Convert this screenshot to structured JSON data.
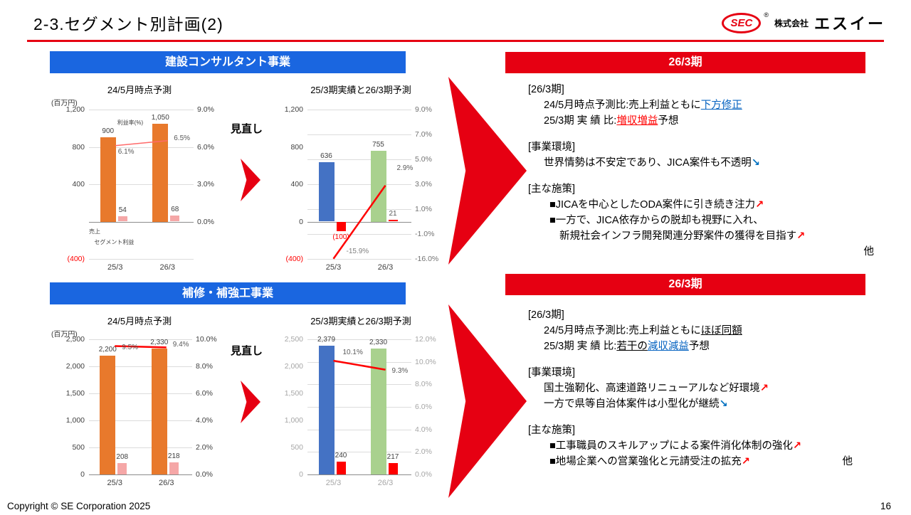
{
  "header": {
    "title": "2-3.セグメント別計画(2)",
    "logo": {
      "mark": "SEC",
      "reg": "®",
      "company_small": "株式会社",
      "company_large": "エスイー"
    }
  },
  "footer": {
    "copyright": "Copyright © SE Corporation 2025",
    "page": "16"
  },
  "sections": [
    {
      "header": "建設コンサルタント事業",
      "revise_label": "見直し"
    },
    {
      "header": "補修・補強工事業",
      "revise_label": "見直し"
    }
  ],
  "right_panels": [
    {
      "period_header": "26/3期",
      "lines": [
        {
          "segs": [
            {
              "t": "[26/3期]"
            }
          ]
        },
        {
          "ind": 1,
          "segs": [
            {
              "t": "24/5月時点予測比:売上利益ともに"
            },
            {
              "t": "下方修正",
              "s": "blue-ul"
            }
          ]
        },
        {
          "ind": 1,
          "segs": [
            {
              "t": "25/3期 実 績 比:"
            },
            {
              "t": "増収増益",
              "s": "red-ul"
            },
            {
              "t": "予想"
            }
          ]
        },
        {
          "gap": true,
          "segs": [
            {
              "t": "[事業環境]"
            }
          ]
        },
        {
          "ind": 1,
          "segs": [
            {
              "t": "世界情勢は不安定であり、JICA案件も不透明"
            },
            {
              "t": "↘",
              "s": "down"
            }
          ]
        },
        {
          "gap": true,
          "segs": [
            {
              "t": "[主な施策]"
            }
          ]
        },
        {
          "ind": 2,
          "segs": [
            {
              "t": "■JICAを中心としたODA案件に引き続き注力"
            },
            {
              "t": "↗",
              "s": "up"
            }
          ]
        },
        {
          "ind": 2,
          "segs": [
            {
              "t": "■一方で、JICA依存からの脱却も視野に入れ、"
            }
          ]
        },
        {
          "ind": 3,
          "segs": [
            {
              "t": "新規社会インフラ開発関連分野案件の獲得を目指す"
            },
            {
              "t": "↗",
              "s": "up"
            }
          ]
        },
        {
          "align": "right",
          "segs": [
            {
              "t": "他"
            }
          ]
        }
      ]
    },
    {
      "period_header": "26/3期",
      "lines": [
        {
          "segs": [
            {
              "t": "[26/3期]"
            }
          ]
        },
        {
          "ind": 1,
          "segs": [
            {
              "t": "24/5月時点予測比:売上利益ともに"
            },
            {
              "t": "ほぼ同額",
              "s": "black-ul"
            }
          ]
        },
        {
          "ind": 1,
          "segs": [
            {
              "t": "25/3期 実 績 比:"
            },
            {
              "t": "若干の",
              "s": "black-ul"
            },
            {
              "t": "減収減益",
              "s": "blue-ul"
            },
            {
              "t": "予想"
            }
          ]
        },
        {
          "gap": true,
          "segs": [
            {
              "t": "[事業環境]"
            }
          ]
        },
        {
          "ind": 1,
          "segs": [
            {
              "t": "国土強靭化、高速道路リニューアルなど好環境"
            },
            {
              "t": "↗",
              "s": "up"
            }
          ]
        },
        {
          "ind": 1,
          "segs": [
            {
              "t": "一方で県等自治体案件は小型化が継続"
            },
            {
              "t": "↘",
              "s": "down"
            }
          ]
        },
        {
          "gap": true,
          "segs": [
            {
              "t": "[主な施策]"
            }
          ]
        },
        {
          "ind": 2,
          "segs": [
            {
              "t": "■工事職員のスキルアップによる案件消化体制の強化"
            },
            {
              "t": "↗",
              "s": "up"
            }
          ]
        },
        {
          "ind": 2,
          "segs": [
            {
              "t": "■地場企業への営業強化と元請受注の拡充"
            },
            {
              "t": "↗",
              "s": "up"
            },
            {
              "t": "他",
              "s": "tail"
            }
          ]
        }
      ]
    }
  ],
  "chart_data": [
    {
      "type": "bar",
      "title": "24/5月時点予測",
      "unit": "(百万円)",
      "categories": [
        "25/3",
        "26/3"
      ],
      "grid": "y1",
      "y1": {
        "color": "#404040",
        "ticks": [
          {
            "label": "1,200",
            "v": 1200,
            "f": 0
          },
          {
            "label": "800",
            "v": 800,
            "f": 0.25
          },
          {
            "label": "400",
            "v": 400,
            "f": 0.5
          },
          {
            "label": "",
            "v": 0,
            "f": 0.75
          },
          {
            "label": "(400)",
            "v": -400,
            "f": 1,
            "red": true
          }
        ]
      },
      "y2": {
        "color": "#404040",
        "ticks": [
          {
            "label": "9.0%",
            "v": 9,
            "f": 0
          },
          {
            "label": "6.0%",
            "v": 6,
            "f": 0.25
          },
          {
            "label": "3.0%",
            "v": 3,
            "f": 0.5
          },
          {
            "label": "0.0%",
            "v": 0,
            "f": 0.75
          }
        ]
      },
      "series": [
        {
          "name": "売上",
          "type": "bar",
          "color": "#E8792C",
          "values": [
            900,
            1050
          ],
          "labels": [
            "900",
            "1,050"
          ]
        },
        {
          "name": "セグメント利益",
          "type": "bar",
          "color": "#F5A7A7",
          "values": [
            54,
            68
          ],
          "labels": [
            "54",
            "68"
          ]
        },
        {
          "name": "利益率(%)",
          "type": "line",
          "color": "#FF6A6A",
          "width": 1.4,
          "values": [
            6.1,
            6.5
          ],
          "labels": [
            "6.1%",
            "6.5%"
          ],
          "label_offsets": [
            [
              4,
              3
            ],
            [
              9,
              -9
            ]
          ]
        }
      ],
      "annotations": [
        {
          "t": "利益率(%)",
          "x": 0.27,
          "y": 0.06
        },
        {
          "t": "売上",
          "x": 0.0,
          "y": 0.79
        },
        {
          "t": "セグメント利益",
          "x": 0.05,
          "y": 0.86
        }
      ]
    },
    {
      "type": "bar",
      "title": "25/3期実績と26/3期予測",
      "categories": [
        "25/3",
        "26/3"
      ],
      "grid": "y2",
      "y1": {
        "color": "#404040",
        "ticks": [
          {
            "label": "1,200",
            "v": 1200,
            "f": 0
          },
          {
            "label": "800",
            "v": 800,
            "f": 0.25
          },
          {
            "label": "400",
            "v": 400,
            "f": 0.5
          },
          {
            "label": "0",
            "v": 0,
            "f": 0.75
          },
          {
            "label": "(400)",
            "v": -400,
            "f": 1,
            "red": true
          }
        ]
      },
      "y2": {
        "color": "#737373",
        "ticks": [
          {
            "label": "9.0%",
            "v": 9,
            "f": 0
          },
          {
            "label": "7.0%",
            "v": 7,
            "f": 0.1667
          },
          {
            "label": "5.0%",
            "v": 5,
            "f": 0.3333
          },
          {
            "label": "3.0%",
            "v": 3,
            "f": 0.5
          },
          {
            "label": "1.0%",
            "v": 1,
            "f": 0.6667
          },
          {
            "label": "-1.0%",
            "v": -1,
            "f": 0.8333
          },
          {
            "label": "-16.0%",
            "v": -16,
            "f": 1
          }
        ]
      },
      "series": [
        {
          "name": "売上",
          "type": "bar",
          "colors": [
            "#4472C4",
            "#A9D18E"
          ],
          "values": [
            636,
            755
          ],
          "labels": [
            "636",
            "755"
          ]
        },
        {
          "name": "セグメント利益",
          "type": "bar",
          "color": "#FF0000",
          "values": [
            -100,
            21
          ],
          "labels": [
            "(100)",
            "21"
          ],
          "label_colors": [
            "#FF0000",
            "#595959"
          ]
        },
        {
          "name": "利益率(%)",
          "type": "line",
          "color": "#FF0000",
          "width": 2.5,
          "values": [
            -15.9,
            2.9
          ],
          "labels": [
            "-15.9%",
            "2.9%"
          ],
          "label_colors": [
            "#808080",
            "#595959"
          ],
          "label_offsets": [
            [
              18,
              -16
            ],
            [
              16,
              -30
            ]
          ]
        }
      ]
    },
    {
      "type": "bar",
      "title": "24/5月時点予測",
      "unit": "(百万円)",
      "categories": [
        "25/3",
        "26/3"
      ],
      "grid": "y1",
      "y1": {
        "color": "#404040",
        "ticks": [
          {
            "label": "2,500",
            "v": 2500,
            "f": 0
          },
          {
            "label": "2,000",
            "v": 2000,
            "f": 0.2
          },
          {
            "label": "1,500",
            "v": 1500,
            "f": 0.4
          },
          {
            "label": "1,000",
            "v": 1000,
            "f": 0.6
          },
          {
            "label": "500",
            "v": 500,
            "f": 0.8
          },
          {
            "label": "0",
            "v": 0,
            "f": 1
          }
        ]
      },
      "y2": {
        "color": "#404040",
        "ticks": [
          {
            "label": "10.0%",
            "v": 10,
            "f": 0
          },
          {
            "label": "8.0%",
            "v": 8,
            "f": 0.2
          },
          {
            "label": "6.0%",
            "v": 6,
            "f": 0.4
          },
          {
            "label": "4.0%",
            "v": 4,
            "f": 0.6
          },
          {
            "label": "2.0%",
            "v": 2,
            "f": 0.8
          },
          {
            "label": "0.0%",
            "v": 0,
            "f": 1
          }
        ]
      },
      "series": [
        {
          "name": "売上",
          "type": "bar",
          "color": "#E8792C",
          "values": [
            2200,
            2330
          ],
          "labels": [
            "2,200",
            "2,330"
          ]
        },
        {
          "name": "セグメント利益",
          "type": "bar",
          "color": "#F5A7A7",
          "values": [
            208,
            218
          ],
          "labels": [
            "208",
            "218"
          ]
        },
        {
          "name": "利益率(%)",
          "type": "line",
          "color": "#FF0000",
          "width": 2.5,
          "values": [
            9.5,
            9.4
          ],
          "labels": [
            "9.5%",
            "9.4%"
          ],
          "label_offsets": [
            [
              10,
              -4
            ],
            [
              9,
              -9
            ]
          ]
        }
      ]
    },
    {
      "type": "bar",
      "title": "25/3期実績と26/3期予測",
      "categories": [
        "25/3",
        "26/3"
      ],
      "grid": "y2",
      "y1": {
        "color": "#A6A6A6",
        "ticks": [
          {
            "label": "2,500",
            "v": 2500,
            "f": 0
          },
          {
            "label": "2,000",
            "v": 2000,
            "f": 0.2
          },
          {
            "label": "1,500",
            "v": 1500,
            "f": 0.4
          },
          {
            "label": "1,000",
            "v": 1000,
            "f": 0.6
          },
          {
            "label": "500",
            "v": 500,
            "f": 0.8
          },
          {
            "label": "0",
            "v": 0,
            "f": 1
          }
        ]
      },
      "y2": {
        "color": "#A6A6A6",
        "ticks": [
          {
            "label": "12.0%",
            "v": 12,
            "f": 0
          },
          {
            "label": "10.0%",
            "v": 10,
            "f": 0.1667
          },
          {
            "label": "8.0%",
            "v": 8,
            "f": 0.3333
          },
          {
            "label": "6.0%",
            "v": 6,
            "f": 0.5
          },
          {
            "label": "4.0%",
            "v": 4,
            "f": 0.6667
          },
          {
            "label": "2.0%",
            "v": 2,
            "f": 0.8333
          },
          {
            "label": "0.0%",
            "v": 0,
            "f": 1
          }
        ]
      },
      "series": [
        {
          "name": "売上",
          "type": "bar",
          "colors": [
            "#4472C4",
            "#A9D18E"
          ],
          "values": [
            2379,
            2330
          ],
          "labels": [
            "2,379",
            "2,330"
          ]
        },
        {
          "name": "セグメント利益",
          "type": "bar",
          "color": "#FF0000",
          "values": [
            240,
            217
          ],
          "labels": [
            "240",
            "217"
          ]
        },
        {
          "name": "利益率(%)",
          "type": "line",
          "color": "#FF0000",
          "width": 2.5,
          "values": [
            10.1,
            9.3
          ],
          "labels": [
            "10.1%",
            "9.3%"
          ],
          "label_offsets": [
            [
              13,
              -17
            ],
            [
              9,
              -4
            ]
          ]
        }
      ]
    }
  ]
}
